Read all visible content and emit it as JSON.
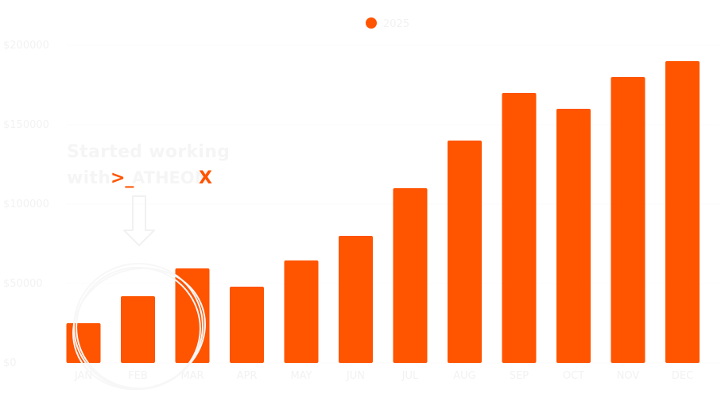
{
  "chart_data": {
    "type": "bar",
    "categories": [
      "JAN",
      "FEB",
      "MAR",
      "APR",
      "MAY",
      "JUN",
      "JUL",
      "AUG",
      "SEP",
      "OCT",
      "NOV",
      "DEC"
    ],
    "series": [
      {
        "name": "2025",
        "values": [
          25000,
          42000,
          59500,
          48000,
          64500,
          80000,
          110000,
          140000,
          170000,
          160000,
          180000,
          190000
        ]
      }
    ],
    "yticks": [
      "$0",
      "$50000",
      "$100000",
      "$150000",
      "$200000"
    ],
    "ylim": [
      0,
      200000
    ],
    "grid": true,
    "legend": "top-center",
    "bar_color": "#ff5400",
    "text_color": "#f2f2f2"
  },
  "annotation": {
    "line1": "Started working",
    "line2_prefix": "with",
    "brand_prompt": ">_",
    "brand_name": "ATHEON",
    "brand_suffix": "X",
    "target_category": "FEB"
  }
}
